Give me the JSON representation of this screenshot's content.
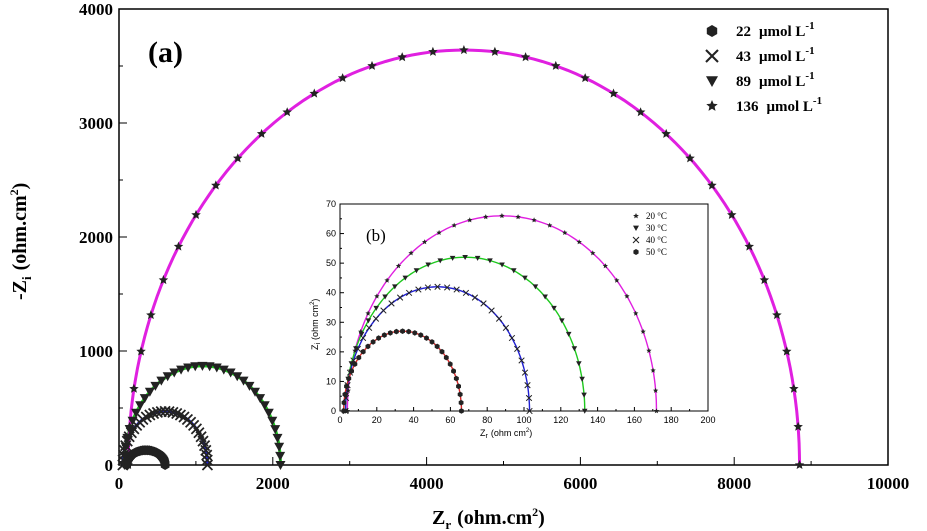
{
  "chart_data": [
    {
      "type": "scatter",
      "panel_label": "(a)",
      "xlabel": "Z",
      "xlabel_sub": "r",
      "xlabel_unit": "(ohm.cm",
      "xlabel_sup": "2",
      "xlabel_close": ")",
      "ylabel": "-Z",
      "ylabel_sub": "i",
      "ylabel_unit": "(ohm.cm",
      "ylabel_sup": "2",
      "ylabel_close": ")",
      "xlim": [
        0,
        10000
      ],
      "ylim": [
        0,
        4000
      ],
      "xticks": [
        "0",
        "2000",
        "4000",
        "6000",
        "8000",
        "10000"
      ],
      "yticks": [
        "0",
        "1000",
        "2000",
        "3000",
        "4000"
      ],
      "legend_position": "top-right",
      "series": [
        {
          "name": "22",
          "unit": "μmol L",
          "sup": "-1",
          "marker": "hexagon",
          "color": "#d62728",
          "x0": 100,
          "x1": 600,
          "peak": 130
        },
        {
          "name": "43",
          "unit": "μmol L",
          "sup": "-1",
          "marker": "x",
          "color": "#1f1fd0",
          "x0": 50,
          "x1": 1150,
          "peak": 470
        },
        {
          "name": "89",
          "unit": "μmol L",
          "sup": "-1",
          "marker": "triangle-down",
          "color": "#1ec81e",
          "x0": 70,
          "x1": 2100,
          "peak": 870
        },
        {
          "name": "136",
          "unit": "μmol L",
          "sup": "-1",
          "marker": "star",
          "color": "#e020e0",
          "x0": 120,
          "x1": 8850,
          "peak": 3640
        }
      ]
    },
    {
      "type": "scatter",
      "panel_label": "(b)",
      "xlabel": "Z",
      "xlabel_sub": "r",
      "xlabel_unit": "(ohm cm",
      "xlabel_sup": "2",
      "xlabel_close": ")",
      "ylabel": "Z",
      "ylabel_sub": "i",
      "ylabel_unit": "(ohm cm",
      "ylabel_sup": "2",
      "ylabel_close": ")",
      "xlim": [
        0,
        200
      ],
      "ylim": [
        0,
        70
      ],
      "xticks": [
        "0",
        "20",
        "40",
        "60",
        "80",
        "100",
        "120",
        "140",
        "160",
        "180",
        "200"
      ],
      "yticks": [
        "0",
        "10",
        "20",
        "30",
        "40",
        "50",
        "60",
        "70"
      ],
      "legend_position": "top-right",
      "series": [
        {
          "name": "20 °C",
          "marker": "star",
          "color": "#e020e0",
          "x0": 4,
          "x1": 172,
          "peak": 66
        },
        {
          "name": "30 °C",
          "marker": "triangle-down",
          "color": "#1ec81e",
          "x0": 3,
          "x1": 133,
          "peak": 52
        },
        {
          "name": "40 °C",
          "marker": "x",
          "color": "#1f1fd0",
          "x0": 3,
          "x1": 103,
          "peak": 42
        },
        {
          "name": "50 °C",
          "marker": "hexagon",
          "color": "#d62728",
          "x0": 2,
          "x1": 66,
          "peak": 27
        }
      ]
    }
  ]
}
